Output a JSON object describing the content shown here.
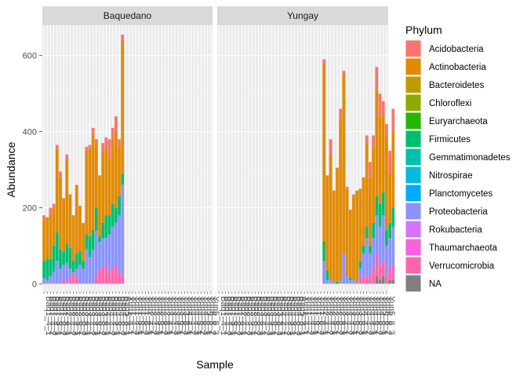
{
  "chart_data": {
    "type": "bar",
    "stacked": true,
    "faceted": true,
    "xlabel": "Sample",
    "ylabel": "Abundance",
    "ylim": [
      -20,
      680
    ],
    "yticks": [
      0,
      200,
      400,
      600
    ],
    "legend": {
      "title": "Phylum",
      "placement": "right",
      "entries": [
        {
          "name": "Acidobacteria",
          "color": "#F8766D"
        },
        {
          "name": "Actinobacteria",
          "color": "#E18A00"
        },
        {
          "name": "Bacteroidetes",
          "color": "#BE9C00"
        },
        {
          "name": "Chloroflexi",
          "color": "#8CAB00"
        },
        {
          "name": "Euryarchaeota",
          "color": "#24B700"
        },
        {
          "name": "Firmicutes",
          "color": "#00BE70"
        },
        {
          "name": "Gemmatimonadetes",
          "color": "#00C1AB"
        },
        {
          "name": "Nitrospirae",
          "color": "#00BBDA"
        },
        {
          "name": "Planctomycetes",
          "color": "#00ACFC"
        },
        {
          "name": "Proteobacteria",
          "color": "#8B93FF"
        },
        {
          "name": "Rokubacteria",
          "color": "#D575FE"
        },
        {
          "name": "Thaumarchaeota",
          "color": "#F962DD"
        },
        {
          "name": "Verrucomicrobia",
          "color": "#FF65AC"
        },
        {
          "name": "NA",
          "color": "#808080"
        }
      ]
    },
    "facets": [
      {
        "label": "Baquedano",
        "bars": [
          {
            "Actinobacteria": 110,
            "Firmicutes": 45,
            "Proteobacteria": 15,
            "Acidobacteria": 10
          },
          {
            "Actinobacteria": 100,
            "Firmicutes": 55,
            "Chloroflexi": 10,
            "Proteobacteria": 10
          },
          {
            "Actinobacteria": 120,
            "Firmicutes": 45,
            "Proteobacteria": 20,
            "Acidobacteria": 15
          },
          {
            "Actinobacteria": 100,
            "Firmicutes": 60,
            "Gemmatimonadetes": 10,
            "Proteobacteria": 30,
            "Acidobacteria": 10
          },
          {
            "Actinobacteria": 220,
            "Firmicutes": 75,
            "Proteobacteria": 60,
            "Acidobacteria": 10
          },
          {
            "Actinobacteria": 190,
            "Firmicutes": 50,
            "Proteobacteria": 40,
            "Acidobacteria": 15
          },
          {
            "Actinobacteria": 140,
            "Firmicutes": 35,
            "Proteobacteria": 40,
            "Verrucomicrobia": 10
          },
          {
            "Actinobacteria": 220,
            "Firmicutes": 50,
            "Proteobacteria": 55,
            "Acidobacteria": 15
          },
          {
            "Actinobacteria": 140,
            "Firmicutes": 55,
            "Proteobacteria": 25,
            "Verrucomicrobia": 15
          },
          {
            "Actinobacteria": 120,
            "Firmicutes": 30,
            "Verrucomicrobia": 30
          },
          {
            "Actinobacteria": 180,
            "Firmicutes": 40,
            "Proteobacteria": 25,
            "Verrucomicrobia": 15
          },
          {
            "Actinobacteria": 120,
            "Proteobacteria": 50,
            "Firmicutes": 35
          },
          {
            "Actinobacteria": 100,
            "Proteobacteria": 40,
            "Firmicutes": 20
          },
          {
            "Actinobacteria": 220,
            "Proteobacteria": 90,
            "Firmicutes": 40,
            "Acidobacteria": 10
          },
          {
            "Actinobacteria": 230,
            "Proteobacteria": 70,
            "Firmicutes": 55,
            "Acidobacteria": 10
          },
          {
            "Actinobacteria": 250,
            "Proteobacteria": 90,
            "Firmicutes": 50,
            "Acidobacteria": 20
          },
          {
            "Actinobacteria": 170,
            "Proteobacteria": 120,
            "Firmicutes": 60,
            "Verrucomicrobia": 20,
            "Acidobacteria": 10
          },
          {
            "Actinobacteria": 160,
            "Proteobacteria": 70,
            "Verrucomicrobia": 40,
            "Firmicutes": 15
          },
          {
            "Actinobacteria": 190,
            "Proteobacteria": 80,
            "Firmicutes": 40,
            "Verrucomicrobia": 40,
            "Acidobacteria": 20
          },
          {
            "Actinobacteria": 180,
            "Proteobacteria": 70,
            "Firmicutes": 60,
            "Verrucomicrobia": 50,
            "Acidobacteria": 25
          },
          {
            "Actinobacteria": 150,
            "Proteobacteria": 100,
            "Firmicutes": 50,
            "Verrucomicrobia": 30,
            "Acidobacteria": 50
          },
          {
            "Actinobacteria": 170,
            "Proteobacteria": 110,
            "Firmicutes": 60,
            "Verrucomicrobia": 40,
            "Acidobacteria": 30
          },
          {
            "Actinobacteria": 200,
            "Proteobacteria": 110,
            "Firmicutes": 40,
            "Verrucomicrobia": 50,
            "Acidobacteria": 40
          },
          {
            "Actinobacteria": 130,
            "Proteobacteria": 150,
            "Firmicutes": 50,
            "Verrucomicrobia": 30,
            "Acidobacteria": 20
          },
          {
            "Actinobacteria": 350,
            "Proteobacteria": 240,
            "Firmicutes": 30,
            "Verrucomicrobia": 20,
            "Acidobacteria": 15
          }
        ]
      },
      {
        "label": "Yungay",
        "bars": [
          {},
          {},
          {},
          {},
          {},
          {},
          {},
          {},
          {},
          {},
          {},
          {},
          {},
          {},
          {},
          {},
          {},
          {},
          {},
          {},
          {},
          {},
          {},
          {},
          {},
          {},
          {},
          {},
          {},
          {},
          {},
          {},
          {
            "Actinobacteria": 470,
            "Firmicutes": 40,
            "Proteobacteria": 60,
            "Euryarchaeota": 10,
            "Acidobacteria": 10
          },
          {
            "Actinobacteria": 250,
            "Proteobacteria": 10,
            "Firmicutes": 20,
            "Euryarchaeota": 5
          },
          {
            "Actinobacteria": 330,
            "Acidobacteria": 40,
            "Proteobacteria": 10
          },
          {
            "Actinobacteria": 240,
            "Proteobacteria": 5
          },
          {
            "Actinobacteria": 300,
            "Euryarchaeota": 5
          },
          {
            "Actinobacteria": 420,
            "Proteobacteria": 10,
            "Acidobacteria": 30
          },
          {
            "Actinobacteria": 470,
            "Proteobacteria": 80,
            "Acidobacteria": 10
          },
          {
            "Actinobacteria": 230,
            "Proteobacteria": 20,
            "Acidobacteria": 5
          },
          {
            "Actinobacteria": 180,
            "Proteobacteria": 10,
            "Firmicutes": 5
          },
          {
            "Actinobacteria": 220,
            "Proteobacteria": 10,
            "Acidobacteria": 5
          },
          {
            "Actinobacteria": 240,
            "Proteobacteria": 5
          },
          {
            "Actinobacteria": 190,
            "Proteobacteria": 30,
            "Firmicutes": 20,
            "Verrucomicrobia": 10
          },
          {
            "Actinobacteria": 180,
            "Proteobacteria": 60,
            "Firmicutes": 20,
            "Verrucomicrobia": 20
          },
          {
            "Actinobacteria": 220,
            "Proteobacteria": 100,
            "Firmicutes": 30,
            "Verrucomicrobia": 20,
            "Acidobacteria": 20
          },
          {
            "Actinobacteria": 180,
            "Proteobacteria": 60,
            "Firmicutes": 20,
            "Verrucomicrobia": 20,
            "Acidobacteria": 40
          },
          {
            "Actinobacteria": 200,
            "Proteobacteria": 80,
            "Firmicutes": 40,
            "Verrucomicrobia": 40,
            "Acidobacteria": 30
          },
          {
            "Actinobacteria": 280,
            "Proteobacteria": 100,
            "Firmicutes": 50,
            "Verrucomicrobia": 60,
            "Acidobacteria": 60,
            "NA": 20
          },
          {
            "Actinobacteria": 230,
            "Proteobacteria": 100,
            "Firmicutes": 60,
            "Verrucomicrobia": 40,
            "Acidobacteria": 60,
            "NA": 10
          },
          {
            "Actinobacteria": 200,
            "Proteobacteria": 120,
            "Firmicutes": 60,
            "Verrucomicrobia": 40,
            "Acidobacteria": 40,
            "NA": 20
          },
          {
            "Actinobacteria": 250,
            "Proteobacteria": 80,
            "Firmicutes": 40,
            "Verrucomicrobia": 20,
            "Acidobacteria": 30
          },
          {
            "Actinobacteria": 130,
            "Proteobacteria": 80,
            "Firmicutes": 40,
            "Verrucomicrobia": 30,
            "Acidobacteria": 60,
            "NA": 10
          },
          {
            "Actinobacteria": 200,
            "Proteobacteria": 100,
            "Firmicutes": 50,
            "Verrucomicrobia": 40,
            "Acidobacteria": 60,
            "NA": 10
          }
        ]
      }
    ],
    "xticks_left": [
      "Baq1_4_1",
      "Baq1_4_2",
      "Baq1_4_3",
      "Baq1_8_1",
      "Baq1_8_2",
      "Baq1_8_3",
      "Baq2_4_1",
      "Baq2_4_2",
      "Baq2_4_3",
      "Baq2_8_1",
      "Baq2_8_2",
      "Baq2_8_3",
      "Baq3_4_1",
      "Baq3_4_2",
      "Baq3_4_3",
      "Baq3_8_1",
      "Baq3_8_2",
      "Baq3_8_3",
      "Baq4_4_1",
      "Baq4_4_2",
      "Baq4_4_3",
      "Baq4_8_1",
      "Baq4_8_2",
      "Baq4_8_3",
      "Baq5_8_1",
      "Yun1_4_1",
      "Yun1_4_2",
      "Yun1_4_3",
      "Yun1_8_1",
      "Yun1_8_2",
      "Yun1_8_3",
      "Yun2_4_1",
      "Yun2_4_2",
      "Yun2_4_3",
      "Yun2_8_1",
      "Yun2_8_2",
      "Yun2_8_3",
      "Yun3_4_1",
      "Yun3_4_2",
      "Yun3_4_3",
      "Yun3_8_1",
      "Yun3_8_2",
      "Yun3_8_3",
      "Yun4_4_1",
      "Yun4_4_2",
      "Yun4_4_3",
      "Yun4_8_1",
      "Yun4_8_2",
      "Yun4_8_3",
      "Yun5_8_1",
      "Yun5_8_2",
      "Yun5_8_3"
    ],
    "xticks_right": [
      "Baq1_4_1",
      "Baq1_4_2",
      "Baq1_4_3",
      "Baq1_8_1",
      "Baq1_8_2",
      "Baq1_8_3",
      "Baq2_4_1",
      "Baq2_4_2",
      "Baq2_4_3",
      "Baq2_8_1",
      "Baq2_8_2",
      "Baq2_8_3",
      "Baq3_4_1",
      "Baq3_4_2",
      "Baq3_4_3",
      "Baq3_8_1",
      "Baq3_8_2",
      "Baq3_8_3",
      "Baq4_4_1",
      "Baq4_4_2",
      "Baq4_4_3",
      "Baq4_8_1",
      "Baq4_8_2",
      "Baq4_8_3",
      "Baq5_8_1",
      "Yun1_4_1",
      "Yun1_4_2",
      "Yun1_4_3",
      "Yun1_8_1",
      "Yun1_8_2",
      "Yun1_8_3",
      "Yun2_4_1",
      "Yun2_4_2",
      "Yun2_4_3",
      "Yun2_8_1",
      "Yun2_8_2",
      "Yun2_8_3",
      "Yun3_4_1",
      "Yun3_4_2",
      "Yun3_4_3",
      "Yun3_8_1",
      "Yun3_8_2",
      "Yun3_8_3",
      "Yun4_4_1",
      "Yun4_4_2",
      "Yun4_4_3",
      "Yun4_8_1",
      "Yun4_8_2",
      "Yun4_8_3",
      "Yun5_8_1",
      "Yun5_8_2",
      "Yun5_8_3"
    ]
  }
}
